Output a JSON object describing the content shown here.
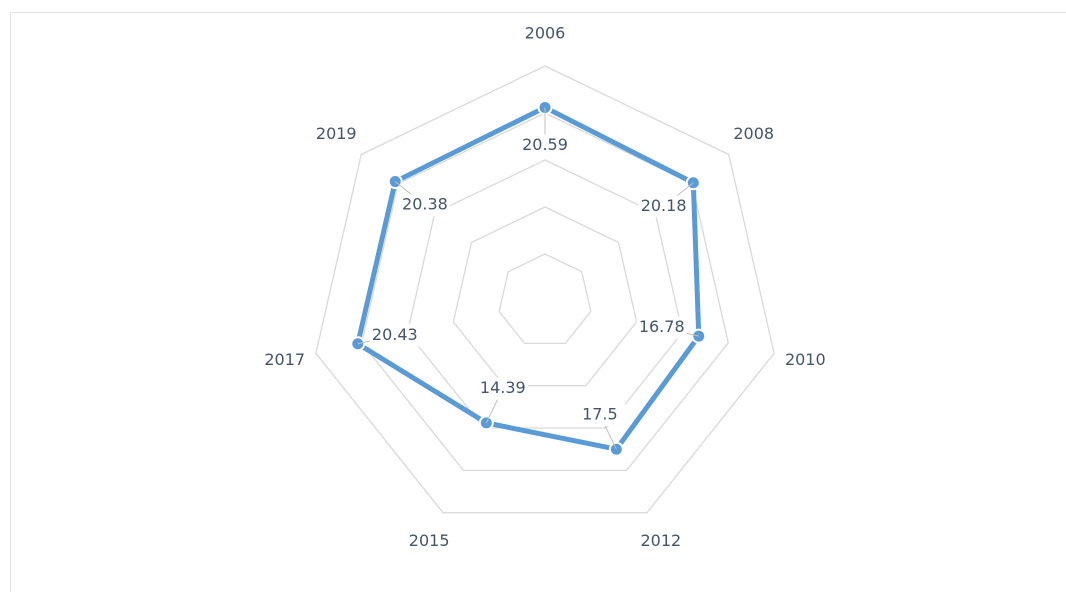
{
  "chart_data": {
    "type": "radar",
    "categories": [
      "2006",
      "2008",
      "2010",
      "2012",
      "2015",
      "2017",
      "2019"
    ],
    "values": [
      20.59,
      20.18,
      16.78,
      17.5,
      14.39,
      20.43,
      20.38
    ],
    "color": "#5b9bd5",
    "ylim": [
      0,
      25
    ],
    "yticks": [
      0,
      5,
      10,
      15,
      20,
      25
    ],
    "grid": true
  }
}
